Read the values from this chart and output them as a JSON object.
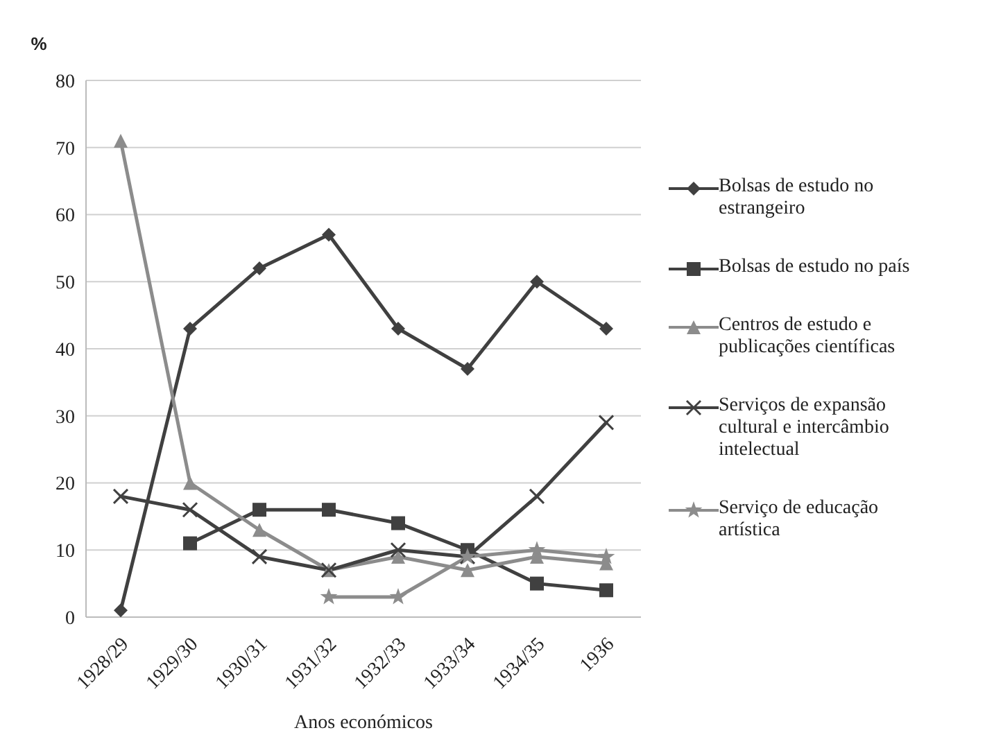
{
  "chart_data": {
    "type": "line",
    "ylabel": "%",
    "xlabel": "Anos económicos",
    "categories": [
      "1928/29",
      "1929/30",
      "1930/31",
      "1931/32",
      "1932/33",
      "1933/34",
      "1934/35",
      "1936"
    ],
    "ylim": [
      0,
      80
    ],
    "yticks": [
      0,
      10,
      20,
      30,
      40,
      50,
      60,
      70,
      80
    ],
    "grid": "y",
    "legend": "right",
    "series": [
      {
        "name": "Bolsas de estudo no estrangeiro",
        "color": "#404040",
        "marker": "diamond",
        "values": [
          1,
          43,
          52,
          57,
          43,
          37,
          50,
          43
        ]
      },
      {
        "name": "Bolsas de estudo no país",
        "color": "#404040",
        "marker": "square",
        "values": [
          null,
          11,
          16,
          16,
          14,
          10,
          5,
          4
        ]
      },
      {
        "name": "Centros de estudo e publicações científicas",
        "color": "#8c8c8c",
        "marker": "triangle",
        "values": [
          71,
          20,
          13,
          7,
          9,
          7,
          9,
          8
        ]
      },
      {
        "name": "Serviços de expansão cultural e intercâmbio intelectual",
        "color": "#404040",
        "marker": "cross",
        "values": [
          18,
          16,
          9,
          7,
          10,
          9,
          18,
          29
        ]
      },
      {
        "name": "Serviço de educação artística",
        "color": "#8c8c8c",
        "marker": "star",
        "values": [
          null,
          null,
          null,
          3,
          3,
          9,
          10,
          9
        ]
      }
    ]
  }
}
